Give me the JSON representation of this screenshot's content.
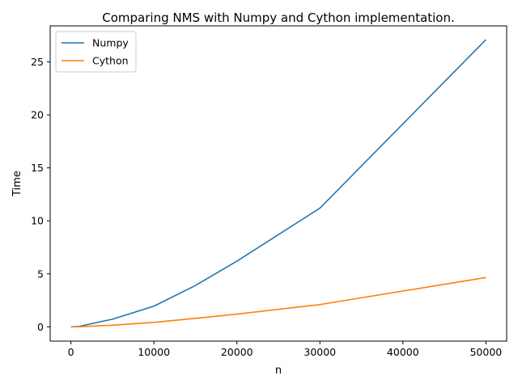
{
  "chart_data": {
    "type": "line",
    "title": "Comparing NMS with Numpy and Cython implementation.",
    "xlabel": "n",
    "ylabel": "Time",
    "xlim": [
      -2500,
      52500
    ],
    "ylim": [
      -1.35,
      28.4
    ],
    "xticks": [
      0,
      10000,
      20000,
      30000,
      40000,
      50000
    ],
    "xtick_labels": [
      "0",
      "10000",
      "20000",
      "30000",
      "40000",
      "50000"
    ],
    "yticks": [
      0,
      5,
      10,
      15,
      20,
      25
    ],
    "ytick_labels": [
      "0",
      "5",
      "10",
      "15",
      "20",
      "25"
    ],
    "grid": false,
    "legend_position": "top-left",
    "x": [
      0,
      1000,
      5000,
      10000,
      15000,
      20000,
      30000,
      50000
    ],
    "series": [
      {
        "name": "Numpy",
        "color": "#1f77b4",
        "values": [
          0.0,
          0.04,
          0.72,
          1.95,
          3.9,
          6.2,
          11.2,
          27.1
        ]
      },
      {
        "name": "Cython",
        "color": "#ff7f0e",
        "values": [
          0.0,
          0.01,
          0.15,
          0.42,
          0.8,
          1.2,
          2.1,
          4.65
        ]
      }
    ]
  }
}
